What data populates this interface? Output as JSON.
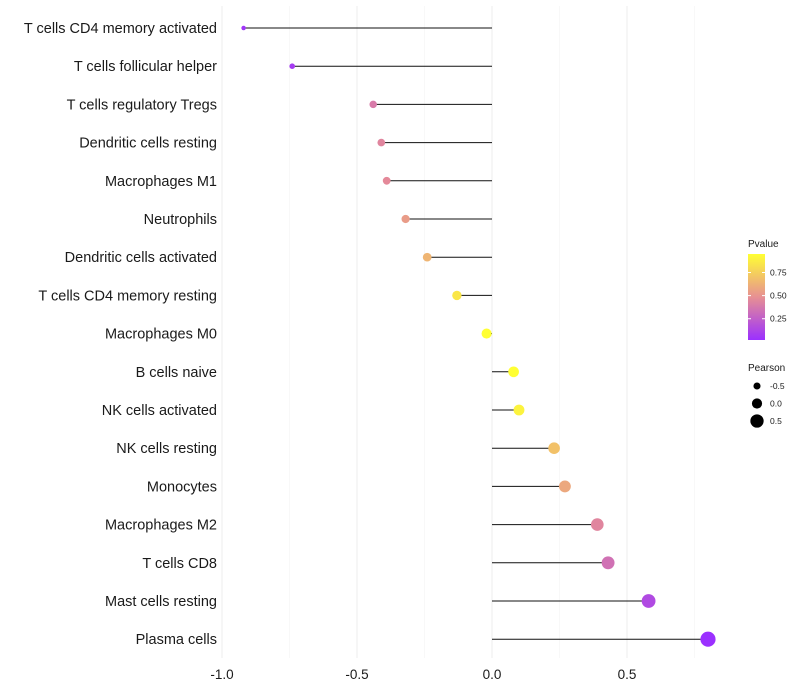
{
  "chart_data": {
    "type": "lollipop",
    "categories": [
      "T cells CD4 memory activated",
      "T cells follicular helper",
      "T cells regulatory  Tregs",
      "Dendritic cells resting",
      "Macrophages M1",
      "Neutrophils",
      "Dendritic cells activated",
      "T cells CD4 memory resting",
      "Macrophages M0",
      "B cells naive",
      "NK cells activated",
      "NK cells resting",
      "Monocytes",
      "Macrophages M2",
      "T cells CD8",
      "Mast cells resting",
      "Plasma cells"
    ],
    "pearson": [
      -0.92,
      -0.74,
      -0.44,
      -0.41,
      -0.39,
      -0.32,
      -0.24,
      -0.13,
      -0.02,
      0.08,
      0.1,
      0.23,
      0.27,
      0.39,
      0.43,
      0.58,
      0.8
    ],
    "pvalue": [
      0.05,
      0.08,
      0.4,
      0.45,
      0.47,
      0.55,
      0.65,
      0.85,
      0.95,
      0.95,
      0.9,
      0.7,
      0.6,
      0.45,
      0.35,
      0.15,
      0.02
    ],
    "xticks": [
      -1.0,
      -0.5,
      0.0,
      0.5
    ],
    "xtick_labels": [
      "-1.0",
      "-0.5",
      "0.0",
      "0.5"
    ],
    "xlim": [
      -1.0,
      0.8
    ],
    "colors": {
      "low": "#9b30ff",
      "high": "#ffff33"
    },
    "legend": {
      "color_title": "Pvalue",
      "color_ticks": [
        0.25,
        0.5,
        0.75
      ],
      "color_tick_labels": [
        "0.25",
        "0.50",
        "0.75"
      ],
      "size_title": "Pearson",
      "size_ticks": [
        -0.5,
        0.0,
        0.5
      ],
      "size_tick_labels": [
        "-0.5",
        "0.0",
        "0.5"
      ]
    }
  }
}
